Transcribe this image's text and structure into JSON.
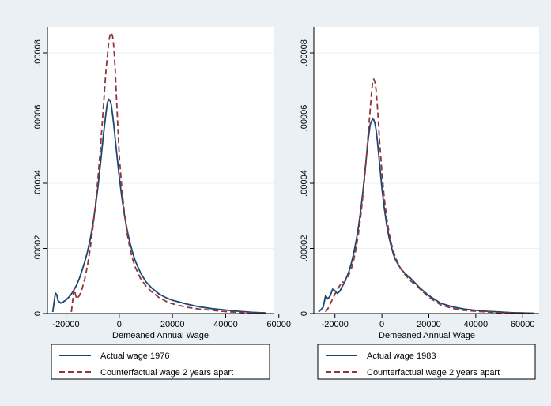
{
  "colors": {
    "background": "#eaf0f3",
    "plot_background": "#ffffff",
    "actual": "#1a476f",
    "counterfactual": "#90353b",
    "grid": "#eaf0f3",
    "axis": "#000000"
  },
  "chart_data": [
    {
      "type": "line",
      "xlabel": "Demeaned Annual Wage",
      "ylabel": "",
      "xlim": [
        -27000,
        58000
      ],
      "ylim": [
        0,
        8.8e-05
      ],
      "xticks": [
        -20000,
        0,
        20000,
        40000,
        60000
      ],
      "xtick_labels": [
        "-20000",
        "0",
        "20000",
        "40000",
        "60000"
      ],
      "yticks": [
        0,
        2e-05,
        4e-05,
        6e-05,
        8e-05
      ],
      "ytick_labels": [
        "0",
        ".00002",
        ".00004",
        ".00006",
        ".00008"
      ],
      "grid": true,
      "legend_position": "bottom",
      "series": [
        {
          "name": "Actual wage 1976",
          "style": "solid",
          "x": [
            -25000,
            -24500,
            -24000,
            -23500,
            -23000,
            -22000,
            -21000,
            -20000,
            -19000,
            -18000,
            -17000,
            -16000,
            -15000,
            -14000,
            -13000,
            -12000,
            -11000,
            -10000,
            -9000,
            -8000,
            -7000,
            -6000,
            -5000,
            -4500,
            -4000,
            -3500,
            -3000,
            -2500,
            -2000,
            -1000,
            0,
            1000,
            2000,
            3000,
            4000,
            5000,
            6000,
            8000,
            10000,
            12000,
            15000,
            18000,
            20000,
            25000,
            30000,
            35000,
            40000,
            45000,
            50000,
            55000
          ],
          "y": [
            5e-07,
            3.5e-06,
            6.3e-06,
            5.8e-06,
            4e-06,
            3.2e-06,
            3.6e-06,
            4.2e-06,
            5e-06,
            6e-06,
            7.3e-06,
            8.8e-06,
            1.08e-05,
            1.32e-05,
            1.58e-05,
            1.88e-05,
            2.25e-05,
            2.7e-05,
            3.25e-05,
            3.9e-05,
            4.65e-05,
            5.45e-05,
            6.15e-05,
            6.45e-05,
            6.58e-05,
            6.55e-05,
            6.4e-05,
            6.1e-05,
            5.75e-05,
            4.95e-05,
            4.2e-05,
            3.55e-05,
            3e-05,
            2.55e-05,
            2.18e-05,
            1.88e-05,
            1.62e-05,
            1.25e-05,
            9.8e-06,
            8e-06,
            6e-06,
            4.7e-06,
            4.1e-06,
            3e-06,
            2.1e-06,
            1.5e-06,
            1.1e-06,
            7e-07,
            4e-07,
            2e-07
          ]
        },
        {
          "name": "Counterfactual wage 2 years apart",
          "style": "dashed",
          "x": [
            -18000,
            -17500,
            -17000,
            -16500,
            -16000,
            -15000,
            -14000,
            -13000,
            -12000,
            -11000,
            -10000,
            -9000,
            -8000,
            -7000,
            -6000,
            -5000,
            -4000,
            -3500,
            -3000,
            -2500,
            -2000,
            -1500,
            -1000,
            -500,
            0,
            1000,
            2000,
            3000,
            4000,
            5000,
            6000,
            8000,
            10000,
            12000,
            15000,
            18000,
            20000,
            25000,
            30000,
            35000,
            40000,
            45000,
            50000,
            55000
          ],
          "y": [
            5e-07,
            4e-06,
            7.5e-06,
            6e-06,
            4.5e-06,
            5.5e-06,
            7.5e-06,
            1.05e-05,
            1.45e-05,
            1.95e-05,
            2.58e-05,
            3.3e-05,
            4.15e-05,
            5.15e-05,
            6.3e-05,
            7.45e-05,
            8.3e-05,
            8.55e-05,
            8.62e-05,
            8.52e-05,
            8.15e-05,
            7.45e-05,
            6.55e-05,
            5.7e-05,
            4.85e-05,
            3.8e-05,
            3.05e-05,
            2.45e-05,
            2e-05,
            1.68e-05,
            1.43e-05,
            1.08e-05,
            8.5e-06,
            6.8e-06,
            4.9e-06,
            3.6e-06,
            3e-06,
            2e-06,
            1.4e-06,
            1e-06,
            6e-07,
            4e-07,
            2e-07,
            1e-07
          ]
        }
      ]
    },
    {
      "type": "line",
      "xlabel": "Demeaned Annual Wage",
      "ylabel": "",
      "xlim": [
        -29000,
        67000
      ],
      "ylim": [
        0,
        8.8e-05
      ],
      "xticks": [
        -20000,
        0,
        20000,
        40000,
        60000
      ],
      "xtick_labels": [
        "-20000",
        "0",
        "20000",
        "40000",
        "60000"
      ],
      "yticks": [
        0,
        2e-05,
        4e-05,
        6e-05,
        8e-05
      ],
      "ytick_labels": [
        "0",
        ".00002",
        ".00004",
        ".00006",
        ".00008"
      ],
      "grid": true,
      "legend_position": "bottom",
      "series": [
        {
          "name": "Actual wage 1983",
          "style": "solid",
          "x": [
            -27000,
            -26000,
            -25000,
            -24000,
            -23000,
            -22000,
            -21000,
            -20000,
            -19000,
            -18000,
            -17000,
            -16000,
            -15000,
            -14000,
            -13000,
            -12000,
            -11000,
            -10000,
            -9000,
            -8000,
            -7000,
            -6000,
            -5000,
            -4000,
            -3500,
            -3000,
            -2500,
            -2000,
            -1000,
            0,
            1000,
            2000,
            3000,
            4000,
            5000,
            6000,
            8000,
            10000,
            12000,
            14000,
            16000,
            20000,
            25000,
            30000,
            35000,
            40000,
            45000,
            50000,
            55000,
            60000,
            65000
          ],
          "y": [
            5e-07,
            1.2e-06,
            2e-06,
            5.5e-06,
            4.5e-06,
            5.5e-06,
            7.5e-06,
            7e-06,
            6.2e-06,
            6.8e-06,
            8.2e-06,
            9.5e-06,
            1.12e-05,
            1.3e-05,
            1.55e-05,
            1.85e-05,
            2.22e-05,
            2.65e-05,
            3.18e-05,
            3.8e-05,
            4.52e-05,
            5.25e-05,
            5.8e-05,
            5.97e-05,
            5.95e-05,
            5.85e-05,
            5.65e-05,
            5.35e-05,
            4.62e-05,
            3.85e-05,
            3.25e-05,
            2.75e-05,
            2.35e-05,
            2.05e-05,
            1.8e-05,
            1.62e-05,
            1.38e-05,
            1.22e-05,
            1.1e-05,
            9.5e-06,
            8e-06,
            5.5e-06,
            3.2e-06,
            2.1e-06,
            1.4e-06,
            1e-06,
            7e-07,
            5e-07,
            3e-07,
            2e-07,
            1e-07
          ]
        },
        {
          "name": "Counterfactual wage 2 years apart",
          "style": "dashed",
          "x": [
            -24000,
            -23000,
            -22000,
            -21000,
            -20000,
            -19000,
            -18000,
            -17000,
            -16000,
            -15000,
            -14000,
            -13000,
            -12000,
            -11000,
            -10000,
            -9000,
            -8000,
            -7000,
            -6000,
            -5000,
            -4500,
            -4000,
            -3500,
            -3000,
            -2500,
            -2000,
            -1500,
            -1000,
            0,
            1000,
            2000,
            3000,
            4000,
            5000,
            6000,
            8000,
            10000,
            12000,
            14000,
            16000,
            20000,
            25000,
            30000,
            35000,
            40000,
            45000,
            50000,
            55000,
            60000,
            65000
          ],
          "y": [
            5e-07,
            1.5e-06,
            3e-06,
            4.5e-06,
            6e-06,
            7.5e-06,
            8.5e-06,
            9.8e-06,
            9.5e-06,
            1.08e-05,
            1.2e-05,
            1.38e-05,
            1.65e-05,
            2e-05,
            2.45e-05,
            3e-05,
            3.68e-05,
            4.45e-05,
            5.35e-05,
            6.25e-05,
            6.72e-05,
            7.08e-05,
            7.2e-05,
            7.12e-05,
            6.88e-05,
            6.45e-05,
            5.9e-05,
            5.3e-05,
            4.35e-05,
            3.55e-05,
            2.95e-05,
            2.5e-05,
            2.15e-05,
            1.9e-05,
            1.68e-05,
            1.38e-05,
            1.18e-05,
            1.02e-05,
            9e-06,
            7.7e-06,
            5e-06,
            2.7e-06,
            1.6e-06,
            1e-06,
            7e-07,
            5e-07,
            3e-07,
            2e-07,
            1e-07,
            1e-07
          ]
        }
      ]
    }
  ]
}
